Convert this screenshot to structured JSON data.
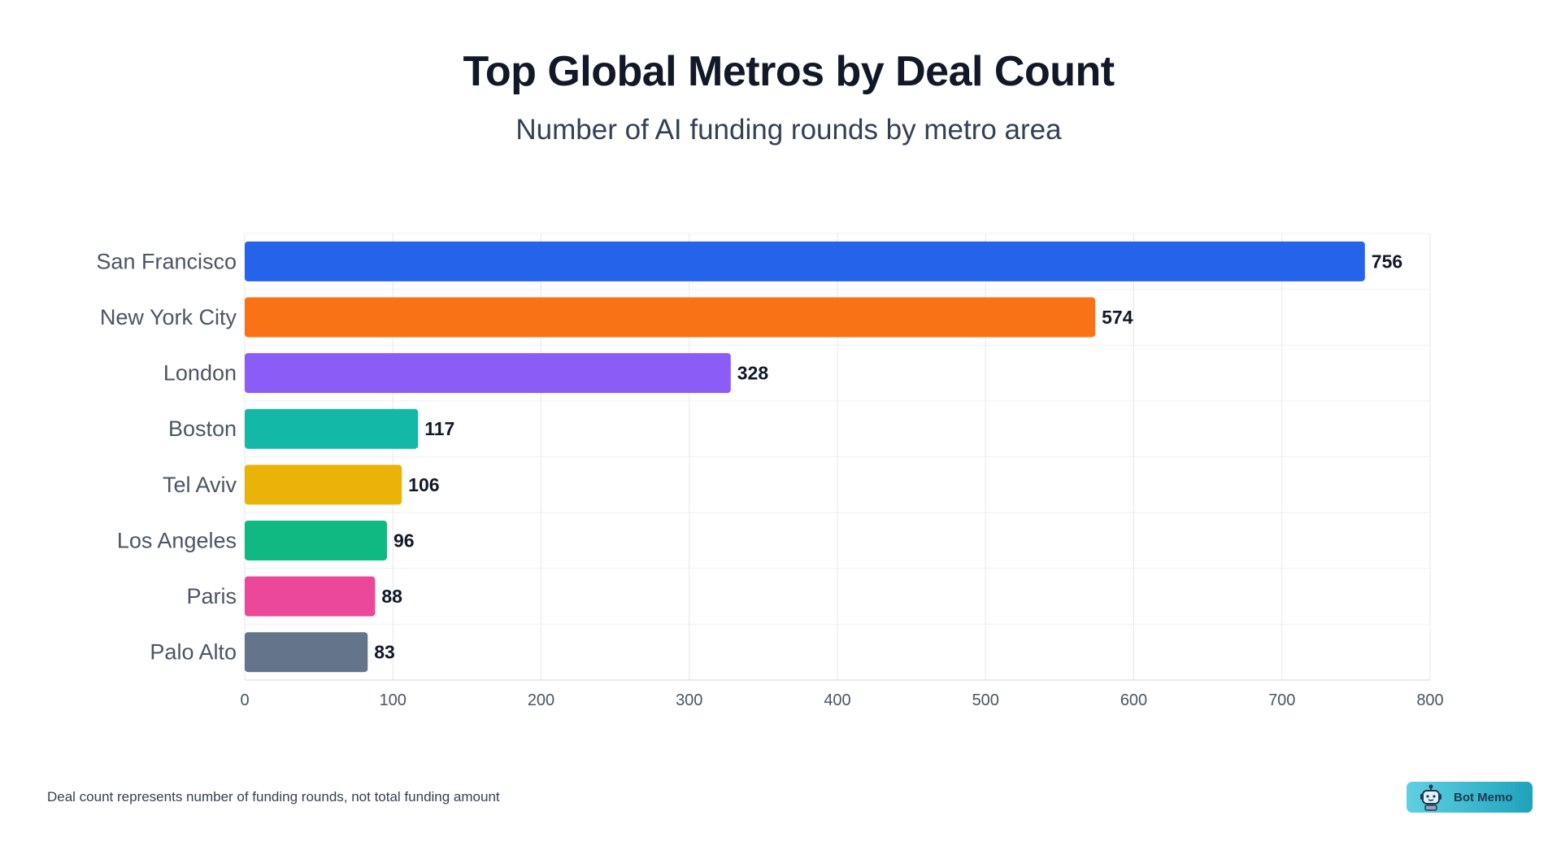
{
  "chart_data": {
    "type": "bar",
    "orientation": "horizontal",
    "title": "Top Global Metros by Deal Count",
    "subtitle": "Number of AI funding rounds by metro area",
    "categories": [
      "San Francisco",
      "New York City",
      "London",
      "Boston",
      "Tel Aviv",
      "Los Angeles",
      "Paris",
      "Palo Alto"
    ],
    "values": [
      756,
      574,
      328,
      117,
      106,
      96,
      88,
      83
    ],
    "colors": [
      "#2563eb",
      "#f97316",
      "#8b5cf6",
      "#14b8a6",
      "#eab308",
      "#10b981",
      "#ec4899",
      "#64748b"
    ],
    "xlim": [
      0,
      800
    ],
    "xticks": [
      0,
      100,
      200,
      300,
      400,
      500,
      600,
      700,
      800
    ],
    "grid": true,
    "data_labels": true,
    "xlabel": "",
    "ylabel": ""
  },
  "footnote": "Deal count represents number of funding rounds, not total funding amount",
  "badge": {
    "label": "Bot Memo",
    "icon": "robot-icon"
  }
}
